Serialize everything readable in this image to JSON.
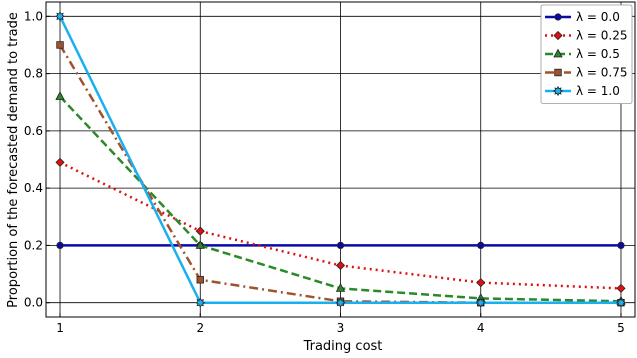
{
  "chart_data": {
    "type": "line",
    "xlabel": "Trading cost",
    "ylabel": "Proportion of the forecasted demand to trade",
    "x": [
      1,
      2,
      3,
      4,
      5
    ],
    "xlim": [
      0.9,
      5.1
    ],
    "ylim": [
      -0.05,
      1.05
    ],
    "xticks": [
      "1",
      "2",
      "3",
      "4",
      "5"
    ],
    "yticks": [
      "0.0",
      "0.2",
      "0.4",
      "0.6",
      "0.8",
      "1.0"
    ],
    "grid": true,
    "legend_position": "top-right",
    "series": [
      {
        "name": "λ = 0.0",
        "values": [
          0.2,
          0.2,
          0.2,
          0.2,
          0.2
        ],
        "color": "#0a0aa8",
        "dash": "solid",
        "marker": "circle",
        "marker_fill": "#0a0aa8"
      },
      {
        "name": "λ = 0.25",
        "values": [
          0.49,
          0.25,
          0.13,
          0.07,
          0.05
        ],
        "color": "#e01010",
        "dash": "dotted",
        "marker": "diamond",
        "marker_fill": "#e01010"
      },
      {
        "name": "λ = 0.5",
        "values": [
          0.72,
          0.2,
          0.05,
          0.015,
          0.005
        ],
        "color": "#2a8a2a",
        "dash": "dashed",
        "marker": "triangle",
        "marker_fill": "#2a8a2a"
      },
      {
        "name": "λ = 0.75",
        "values": [
          0.9,
          0.08,
          0.005,
          0.0,
          0.0
        ],
        "color": "#a0522d",
        "dash": "dashdot",
        "marker": "square",
        "marker_fill": "#a0522d"
      },
      {
        "name": "λ = 1.0",
        "values": [
          1.0,
          0.0,
          0.0,
          0.0,
          0.0
        ],
        "color": "#1ab0f0",
        "dash": "solid",
        "marker": "star",
        "marker_fill": "#1ab0f0"
      }
    ]
  }
}
